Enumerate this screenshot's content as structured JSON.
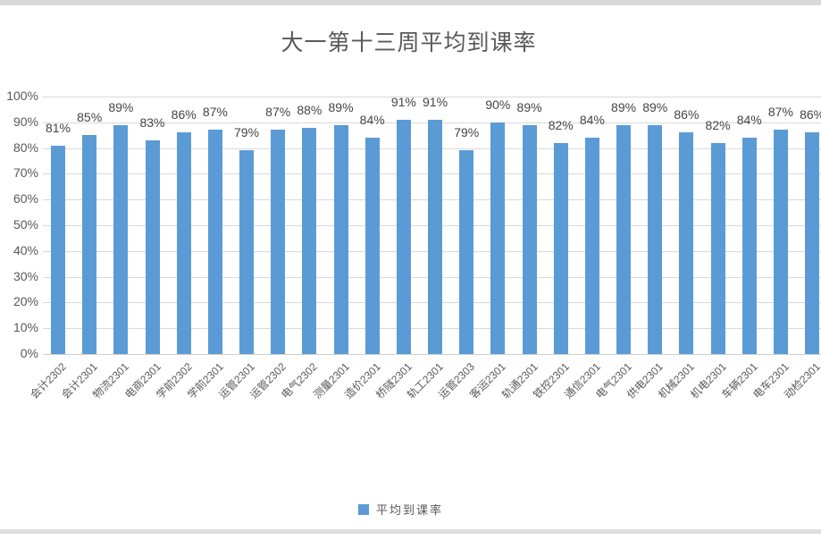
{
  "chart_data": {
    "type": "bar",
    "title": "大一第十三周平均到课率",
    "series_label": "平均到课率",
    "categories": [
      "会计2302",
      "会计2301",
      "物流2301",
      "电商2301",
      "学前2302",
      "学前2301",
      "运管2301",
      "运管2302",
      "电气2302",
      "测量2301",
      "造价2301",
      "桥隧2301",
      "轨工2301",
      "运管2303",
      "客运2301",
      "轨通2301",
      "铁控2301",
      "通信2301",
      "电气2301",
      "供电2301",
      "机械2301",
      "机电2301",
      "车辆2301",
      "电车2301",
      "动检2301"
    ],
    "values": [
      81,
      85,
      89,
      83,
      86,
      87,
      79,
      87,
      88,
      89,
      84,
      91,
      91,
      79,
      90,
      89,
      82,
      84,
      89,
      89,
      86,
      82,
      84,
      87,
      86
    ],
    "value_label_suffix": "%",
    "xlabel": "",
    "ylabel": "",
    "ylim": [
      0,
      100
    ],
    "y_ticks": [
      "0%",
      "10%",
      "20%",
      "30%",
      "40%",
      "50%",
      "60%",
      "70%",
      "80%",
      "90%",
      "100%"
    ],
    "grid": "horizontal",
    "legend_position": "bottom",
    "bar_color": "#5b9bd5",
    "title_color": "#595959",
    "axis_label_color": "#595959",
    "gridline_color": "#d9d9d9"
  }
}
